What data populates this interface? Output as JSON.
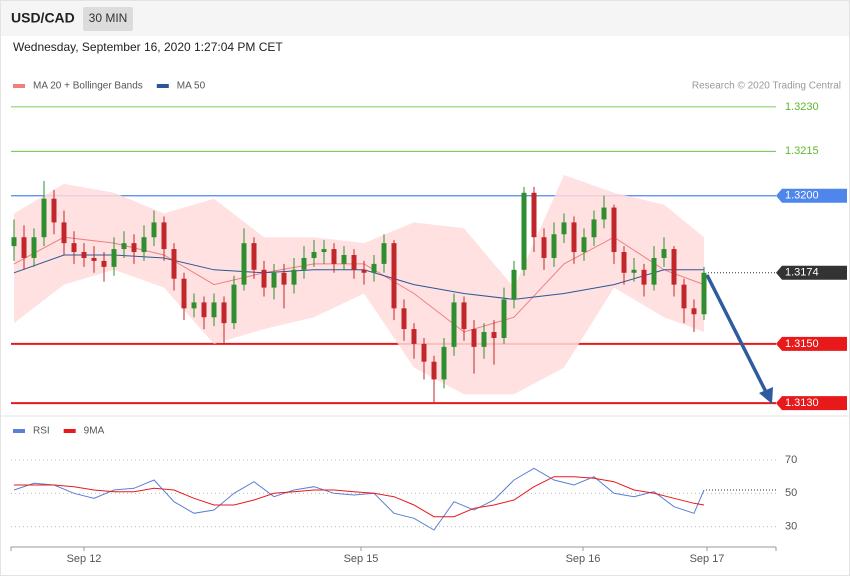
{
  "header": {
    "symbol": "USD/CAD",
    "interval": "30 MIN",
    "timestamp": "Wednesday, September 16, 2020 1:27:04 PM CET",
    "credit": "Research © 2020 Trading Central"
  },
  "chart_data": [
    {
      "type": "candlestick",
      "xlim": [
        -0.3,
        76.2
      ],
      "ylim": [
        1.3126,
        1.3234
      ],
      "up_color": "#2f8f2f",
      "down_color": "#c0262a",
      "candles": [
        [
          1.3183,
          1.3192,
          1.3178,
          1.3186
        ],
        [
          1.3186,
          1.319,
          1.3175,
          1.3179
        ],
        [
          1.3179,
          1.3189,
          1.3176,
          1.3186
        ],
        [
          1.3186,
          1.3205,
          1.3183,
          1.3199
        ],
        [
          1.3199,
          1.3202,
          1.3187,
          1.3191
        ],
        [
          1.3191,
          1.3195,
          1.318,
          1.3184
        ],
        [
          1.3184,
          1.3188,
          1.3177,
          1.3181
        ],
        [
          1.3181,
          1.3184,
          1.3176,
          1.3179
        ],
        [
          1.3179,
          1.3183,
          1.3174,
          1.3178
        ],
        [
          1.3178,
          1.3181,
          1.3171,
          1.3176
        ],
        [
          1.3176,
          1.3186,
          1.3173,
          1.3182
        ],
        [
          1.3182,
          1.3188,
          1.3179,
          1.3184
        ],
        [
          1.3184,
          1.3187,
          1.3177,
          1.3181
        ],
        [
          1.3181,
          1.319,
          1.3178,
          1.3186
        ],
        [
          1.3186,
          1.3195,
          1.3183,
          1.3191
        ],
        [
          1.3191,
          1.3193,
          1.3178,
          1.3182
        ],
        [
          1.3182,
          1.3184,
          1.3168,
          1.3172
        ],
        [
          1.3172,
          1.3174,
          1.3158,
          1.3162
        ],
        [
          1.3162,
          1.3167,
          1.3159,
          1.3164
        ],
        [
          1.3164,
          1.3166,
          1.3155,
          1.3159
        ],
        [
          1.3159,
          1.3167,
          1.3156,
          1.3164
        ],
        [
          1.3164,
          1.3166,
          1.315,
          1.3157
        ],
        [
          1.3157,
          1.3173,
          1.3155,
          1.317
        ],
        [
          1.317,
          1.3189,
          1.3168,
          1.3184
        ],
        [
          1.3184,
          1.3186,
          1.3172,
          1.3175
        ],
        [
          1.3175,
          1.3178,
          1.3166,
          1.3169
        ],
        [
          1.3169,
          1.3177,
          1.3165,
          1.3174
        ],
        [
          1.3174,
          1.3177,
          1.3162,
          1.317
        ],
        [
          1.317,
          1.3179,
          1.3167,
          1.3175
        ],
        [
          1.3175,
          1.3183,
          1.3172,
          1.3179
        ],
        [
          1.3179,
          1.3185,
          1.3176,
          1.3181
        ],
        [
          1.3181,
          1.3185,
          1.3177,
          1.3182
        ],
        [
          1.3182,
          1.3184,
          1.3174,
          1.3177
        ],
        [
          1.3177,
          1.3183,
          1.3175,
          1.318
        ],
        [
          1.318,
          1.3182,
          1.3172,
          1.3175
        ],
        [
          1.3175,
          1.3178,
          1.317,
          1.3174
        ],
        [
          1.3174,
          1.318,
          1.3171,
          1.3177
        ],
        [
          1.3177,
          1.3187,
          1.3174,
          1.3184
        ],
        [
          1.3184,
          1.3185,
          1.3158,
          1.3162
        ],
        [
          1.3162,
          1.3165,
          1.3151,
          1.3155
        ],
        [
          1.3155,
          1.3157,
          1.3145,
          1.315
        ],
        [
          1.315,
          1.3152,
          1.3138,
          1.3144
        ],
        [
          1.3144,
          1.3146,
          1.313,
          1.3138
        ],
        [
          1.3138,
          1.3152,
          1.3135,
          1.3149
        ],
        [
          1.3149,
          1.3167,
          1.3146,
          1.3164
        ],
        [
          1.3164,
          1.3166,
          1.3151,
          1.3155
        ],
        [
          1.3155,
          1.3158,
          1.314,
          1.3149
        ],
        [
          1.3149,
          1.3157,
          1.3145,
          1.3154
        ],
        [
          1.3154,
          1.3158,
          1.3143,
          1.3152
        ],
        [
          1.3152,
          1.3169,
          1.315,
          1.3165
        ],
        [
          1.3165,
          1.3178,
          1.3162,
          1.3175
        ],
        [
          1.3175,
          1.3203,
          1.3173,
          1.3201
        ],
        [
          1.3201,
          1.3203,
          1.3181,
          1.3186
        ],
        [
          1.3186,
          1.3189,
          1.3175,
          1.3179
        ],
        [
          1.3179,
          1.3191,
          1.3176,
          1.3187
        ],
        [
          1.3187,
          1.3194,
          1.3184,
          1.3191
        ],
        [
          1.3191,
          1.3193,
          1.3177,
          1.3181
        ],
        [
          1.3181,
          1.3189,
          1.3178,
          1.3186
        ],
        [
          1.3186,
          1.3195,
          1.3183,
          1.3192
        ],
        [
          1.3192,
          1.32,
          1.3189,
          1.3196
        ],
        [
          1.3196,
          1.3197,
          1.3177,
          1.3181
        ],
        [
          1.3181,
          1.3183,
          1.317,
          1.3174
        ],
        [
          1.3174,
          1.3179,
          1.3171,
          1.3175
        ],
        [
          1.3175,
          1.3177,
          1.3166,
          1.317
        ],
        [
          1.317,
          1.3183,
          1.3168,
          1.3179
        ],
        [
          1.3179,
          1.3186,
          1.3176,
          1.3182
        ],
        [
          1.3182,
          1.3183,
          1.3166,
          1.317
        ],
        [
          1.317,
          1.3172,
          1.3157,
          1.3162
        ],
        [
          1.3162,
          1.3165,
          1.3154,
          1.316
        ],
        [
          1.316,
          1.3176,
          1.3158,
          1.3174
        ]
      ],
      "series": [
        {
          "name": "MA 20 + Bollinger Bands",
          "color": "#f08080",
          "band_color": "#ffdcdc",
          "x": [
            0,
            5,
            10,
            15,
            20,
            25,
            30,
            35,
            40,
            45,
            50,
            55,
            60,
            65,
            69
          ],
          "values": [
            1.3177,
            1.3186,
            1.3184,
            1.318,
            1.317,
            1.3174,
            1.3177,
            1.3177,
            1.3167,
            1.3154,
            1.3159,
            1.3177,
            1.3186,
            1.3175,
            1.317
          ],
          "upper": [
            1.3194,
            1.3204,
            1.3201,
            1.3194,
            1.3199,
            1.3186,
            1.3186,
            1.3184,
            1.3191,
            1.3189,
            1.3169,
            1.3207,
            1.3201,
            1.3197,
            1.3186
          ],
          "lower": [
            1.3157,
            1.317,
            1.3175,
            1.3169,
            1.315,
            1.3155,
            1.3159,
            1.3167,
            1.3142,
            1.3133,
            1.3133,
            1.3142,
            1.3169,
            1.3159,
            1.3154
          ]
        },
        {
          "name": "MA 50",
          "color": "#2b5797",
          "x": [
            0,
            5,
            10,
            15,
            20,
            25,
            30,
            35,
            40,
            45,
            50,
            55,
            60,
            65,
            69
          ],
          "values": [
            1.3174,
            1.318,
            1.318,
            1.3179,
            1.3175,
            1.3174,
            1.3175,
            1.3175,
            1.317,
            1.3167,
            1.3165,
            1.3167,
            1.317,
            1.3175,
            1.3175
          ]
        }
      ],
      "levels": [
        {
          "value": 1.323,
          "label": "1.3230",
          "color": "#5cb82e",
          "style": "thin"
        },
        {
          "value": 1.3215,
          "color": "#5cb82e",
          "style": "thin"
        },
        {
          "value": 1.32,
          "label": "1.3200",
          "color": "#4f86ec",
          "style": "boxed"
        },
        {
          "value": 1.3174,
          "color": "#333333",
          "style": "last"
        },
        {
          "value": 1.315,
          "label": "1.3150",
          "color": "#e8191b",
          "style": "thick"
        },
        {
          "value": 1.313,
          "label": "1.3130",
          "color": "#e8191b",
          "style": "thick"
        }
      ]
    },
    {
      "type": "line",
      "xlim": [
        -0.3,
        76.2
      ],
      "ylim": [
        19,
        82
      ],
      "yticks": [
        30,
        50,
        70
      ],
      "grid": true,
      "xticks": [
        {
          "value": 7,
          "label": "Sep 12"
        },
        {
          "value": 34.7,
          "label": "Sep 15"
        },
        {
          "value": 56.9,
          "label": "Sep 16"
        },
        {
          "value": 69.3,
          "label": "Sep 17"
        }
      ],
      "series": [
        {
          "name": "RSI",
          "color": "#5b7fd6",
          "x": [
            0,
            2,
            4,
            6,
            8,
            10,
            12,
            14,
            16,
            18,
            20,
            22,
            24,
            26,
            28,
            30,
            32,
            34,
            36,
            38,
            40,
            42,
            44,
            46,
            48,
            50,
            52,
            54,
            56,
            58,
            60,
            62,
            64,
            66,
            68,
            69
          ],
          "values": [
            52,
            56,
            55,
            50,
            47,
            52,
            53,
            58,
            45,
            38,
            40,
            50,
            57,
            48,
            52,
            54,
            50,
            49,
            50,
            38,
            35,
            28,
            45,
            40,
            46,
            58,
            65,
            58,
            55,
            60,
            50,
            48,
            51,
            42,
            38,
            52
          ]
        },
        {
          "name": "9MA",
          "color": "#e8191b",
          "x": [
            0,
            2,
            4,
            6,
            8,
            10,
            12,
            14,
            16,
            18,
            20,
            22,
            24,
            26,
            28,
            30,
            32,
            34,
            36,
            38,
            40,
            42,
            44,
            46,
            48,
            50,
            52,
            54,
            56,
            58,
            60,
            62,
            64,
            66,
            68,
            69
          ],
          "values": [
            55,
            55,
            55,
            54,
            52,
            51,
            51,
            53,
            52,
            47,
            43,
            43,
            46,
            50,
            51,
            52,
            52,
            51,
            50,
            48,
            43,
            36,
            36,
            41,
            43,
            46,
            54,
            60,
            60,
            59,
            57,
            52,
            50,
            47,
            44,
            43
          ]
        }
      ]
    }
  ]
}
